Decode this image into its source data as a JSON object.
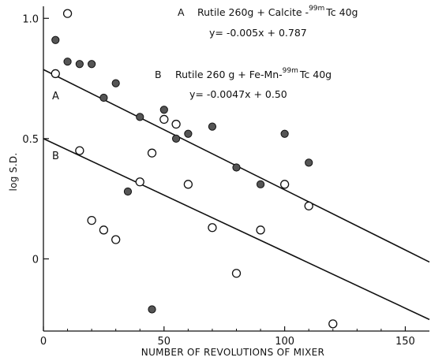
{
  "chart_data": {
    "type": "scatter",
    "xlabel": "NUMBER OF REVOLUTIONS OF MIXER",
    "ylabel": "log S.D.",
    "xlim": [
      0,
      160
    ],
    "ylim": [
      -0.3,
      1.05
    ],
    "x_ticks": [
      0,
      50,
      100,
      150
    ],
    "x_tick_labels": [
      "0",
      "50",
      "100",
      "150"
    ],
    "y_ticks": [
      0,
      0.5,
      1.0
    ],
    "y_tick_labels": [
      "0",
      "0.5",
      "1.0"
    ],
    "grid": false,
    "annotations": {
      "A_label": "A",
      "A_text_pre": "Rutile 260g + Calcite -",
      "A_sup": "99m",
      "A_text_post": "Tc 40g",
      "A_equation": "y= -0.005x + 0.787",
      "B_label": "B",
      "B_text_pre": "Rutile 260 g + Fe-Mn-",
      "B_sup": "99m",
      "B_text_post": "Tc 40g",
      "B_equation": "y= -0.0047x + 0.50"
    },
    "series": [
      {
        "label": "A",
        "marker": "filled",
        "points": [
          [
            5,
            0.91
          ],
          [
            10,
            0.82
          ],
          [
            15,
            0.81
          ],
          [
            20,
            0.81
          ],
          [
            25,
            0.67
          ],
          [
            30,
            0.73
          ],
          [
            35,
            0.28
          ],
          [
            40,
            0.59
          ],
          [
            45,
            -0.21
          ],
          [
            50,
            0.62
          ],
          [
            55,
            0.5
          ],
          [
            60,
            0.52
          ],
          [
            70,
            0.55
          ],
          [
            80,
            0.38
          ],
          [
            90,
            0.31
          ],
          [
            100,
            0.52
          ],
          [
            110,
            0.4
          ]
        ],
        "fit": {
          "slope": -0.005,
          "intercept": 0.787
        }
      },
      {
        "label": "B",
        "marker": "open",
        "points": [
          [
            5,
            0.77
          ],
          [
            10,
            1.02
          ],
          [
            15,
            0.45
          ],
          [
            20,
            0.16
          ],
          [
            25,
            0.12
          ],
          [
            30,
            0.08
          ],
          [
            40,
            0.32
          ],
          [
            45,
            0.44
          ],
          [
            50,
            0.58
          ],
          [
            55,
            0.56
          ],
          [
            60,
            0.31
          ],
          [
            70,
            0.13
          ],
          [
            80,
            -0.06
          ],
          [
            90,
            0.12
          ],
          [
            100,
            0.31
          ],
          [
            110,
            0.22
          ],
          [
            120,
            -0.27
          ]
        ],
        "fit": {
          "slope": -0.0047,
          "intercept": 0.5
        }
      }
    ]
  }
}
